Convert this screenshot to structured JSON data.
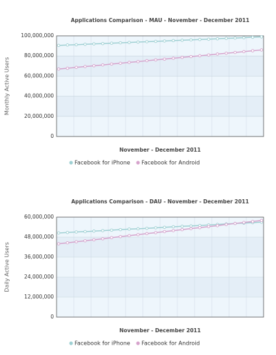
{
  "chart_data": [
    {
      "type": "line",
      "title": "Applications Comparison - MAU - November - December 2011",
      "xlabel": "November - December 2011",
      "ylabel": "Monthly Active Users",
      "ylim": [
        0,
        100000000
      ],
      "yticks": [
        0,
        {
          "value": 20000000,
          "label": "20,000,000"
        },
        {
          "value": 40000000,
          "label": "40,000,000"
        },
        {
          "value": 60000000,
          "label": "60,000,000"
        },
        {
          "value": 80000000,
          "label": "80,000,000"
        },
        {
          "value": 100000000,
          "label": "100,000,000"
        }
      ],
      "grid": true,
      "series": [
        {
          "name": "Facebook for iPhone",
          "color": "#9fd0d3",
          "values": [
            90500000,
            90900000,
            91200000,
            91600000,
            92000000,
            92300000,
            92700000,
            93100000,
            93400000,
            93800000,
            94200000,
            94500000,
            94900000,
            95300000,
            95600000,
            96000000,
            96400000,
            96700000,
            97100000,
            97500000,
            97800000,
            98200000,
            98600000,
            99000000
          ]
        },
        {
          "name": "Facebook for Android",
          "color": "#d6a3cc",
          "values": [
            67000000,
            67800000,
            68700000,
            69500000,
            70300000,
            71100000,
            72000000,
            72800000,
            73600000,
            74400000,
            75300000,
            76100000,
            76900000,
            77700000,
            78600000,
            79400000,
            80200000,
            81000000,
            81900000,
            82700000,
            83500000,
            84300000,
            85200000,
            86000000
          ]
        }
      ]
    },
    {
      "type": "line",
      "title": "Applications Comparison - DAU - November - December 2011",
      "xlabel": "November - December 2011",
      "ylabel": "Daily Active Users",
      "ylim": [
        0,
        60000000
      ],
      "yticks": [
        0,
        {
          "value": 12000000,
          "label": "12,000,000"
        },
        {
          "value": 24000000,
          "label": "24,000,000"
        },
        {
          "value": 36000000,
          "label": "36,000,000"
        },
        {
          "value": 48000000,
          "label": "48,000,000"
        },
        {
          "value": 60000000,
          "label": "60,000,000"
        }
      ],
      "grid": true,
      "series": [
        {
          "name": "Facebook for iPhone",
          "color": "#9fd0d3",
          "values": [
            50500000,
            50800000,
            51100000,
            51300000,
            51600000,
            51900000,
            52200000,
            52500000,
            52800000,
            53000000,
            53300000,
            53600000,
            53900000,
            54200000,
            54500000,
            54700000,
            55000000,
            55300000,
            55600000,
            55900000,
            56200000,
            56400000,
            56700000,
            57000000
          ]
        },
        {
          "name": "Facebook for Android",
          "color": "#d6a3cc",
          "values": [
            44000000,
            44600000,
            45200000,
            45800000,
            46400000,
            47000000,
            47700000,
            48300000,
            48900000,
            49500000,
            50100000,
            50700000,
            51300000,
            51900000,
            52500000,
            53100000,
            53700000,
            54300000,
            54900000,
            55600000,
            56200000,
            56800000,
            57400000,
            58000000
          ]
        }
      ]
    }
  ]
}
